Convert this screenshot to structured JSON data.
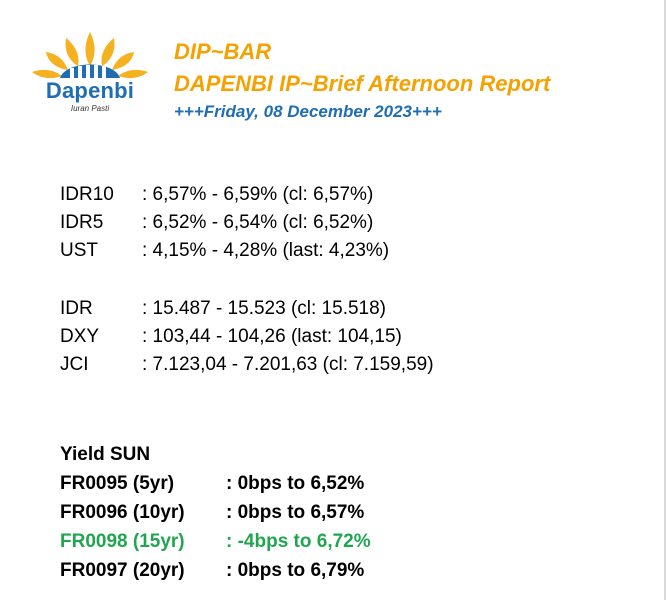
{
  "logo": {
    "name": "Dapenbi",
    "tagline": "Iuran Pasti"
  },
  "header": {
    "title": "DIP~BAR",
    "subtitle": "DAPENBI IP~Brief Afternoon Report",
    "date": "+++Friday, 08 December 2023+++"
  },
  "rates_group1": [
    {
      "label": "IDR10",
      "value": ": 6,57% - 6,59% (cl: 6,57%)"
    },
    {
      "label": "IDR5",
      "value": ": 6,52% - 6,54% (cl: 6,52%)"
    },
    {
      "label": "UST",
      "value": ": 4,15% - 4,28% (last: 4,23%)"
    }
  ],
  "rates_group2": [
    {
      "label": "IDR",
      "value": ": 15.487 - 15.523 (cl: 15.518)"
    },
    {
      "label": "DXY",
      "value": ": 103,44 - 104,26 (last: 104,15)"
    },
    {
      "label": "JCI",
      "value": ": 7.123,04 - 7.201,63 (cl: 7.159,59)"
    }
  ],
  "yield": {
    "title": "Yield SUN",
    "rows": [
      {
        "label": "FR0095 (5yr)",
        "value": ": 0bps to 6,52%"
      },
      {
        "label": "FR0096 (10yr)",
        "value": ": 0bps to 6,57%"
      },
      {
        "label": "FR0098 (15yr)",
        "value": ": -4bps to 6,72%"
      },
      {
        "label": "FR0097 (20yr)",
        "value": ": 0bps to 6,79%"
      }
    ]
  },
  "colors": {
    "orange": "#f5a100",
    "blue": "#1f6db3",
    "green": "#21a650"
  }
}
